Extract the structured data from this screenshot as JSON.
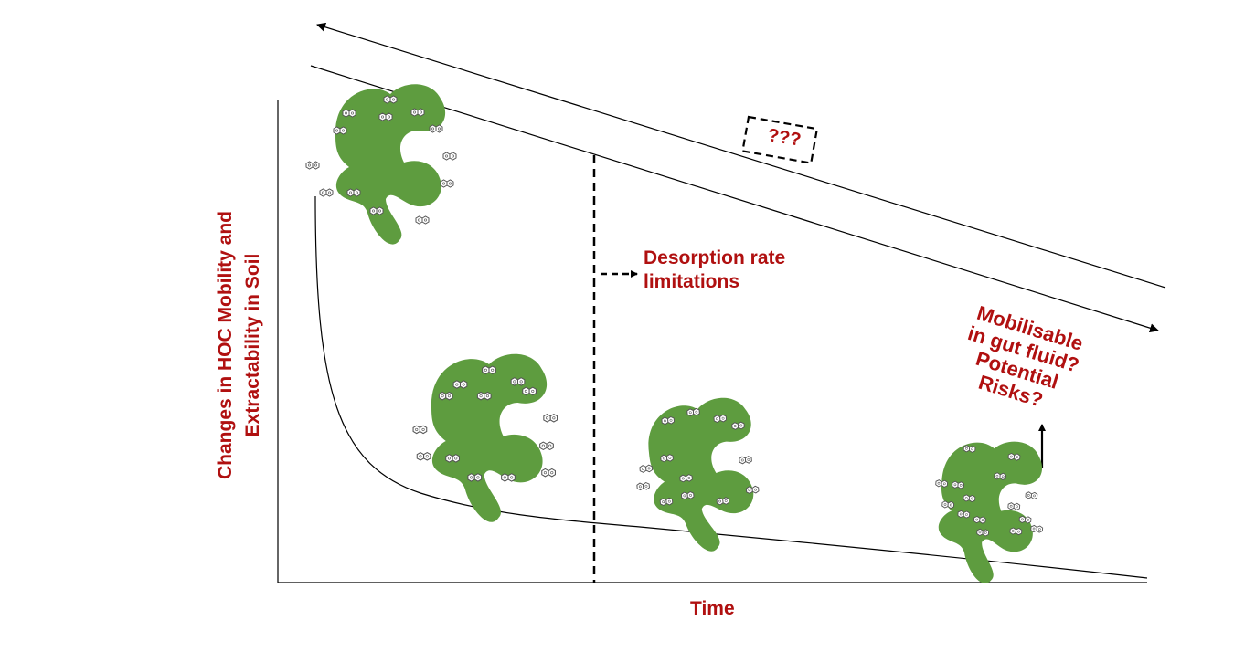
{
  "axis": {
    "ylabel_line1": "Changes in HOC Mobility and",
    "ylabel_line2": "Extractability in Soil",
    "xlabel": "Time"
  },
  "annotations": {
    "desorption_line1": "Desorption rate",
    "desorption_line2": "limitations",
    "unknown": "???",
    "risk_line1": "Mobilisable",
    "risk_line2": "in gut fluid?",
    "risk_line3": "Potential",
    "risk_line4": "Risks?"
  },
  "colors": {
    "soil_particle": "#5e9c3f",
    "label_red": "#b01010",
    "line": "#000000"
  },
  "icons": {
    "particle": "soil-organic-matter-particle",
    "molecule": "hoc-molecule-icon"
  }
}
